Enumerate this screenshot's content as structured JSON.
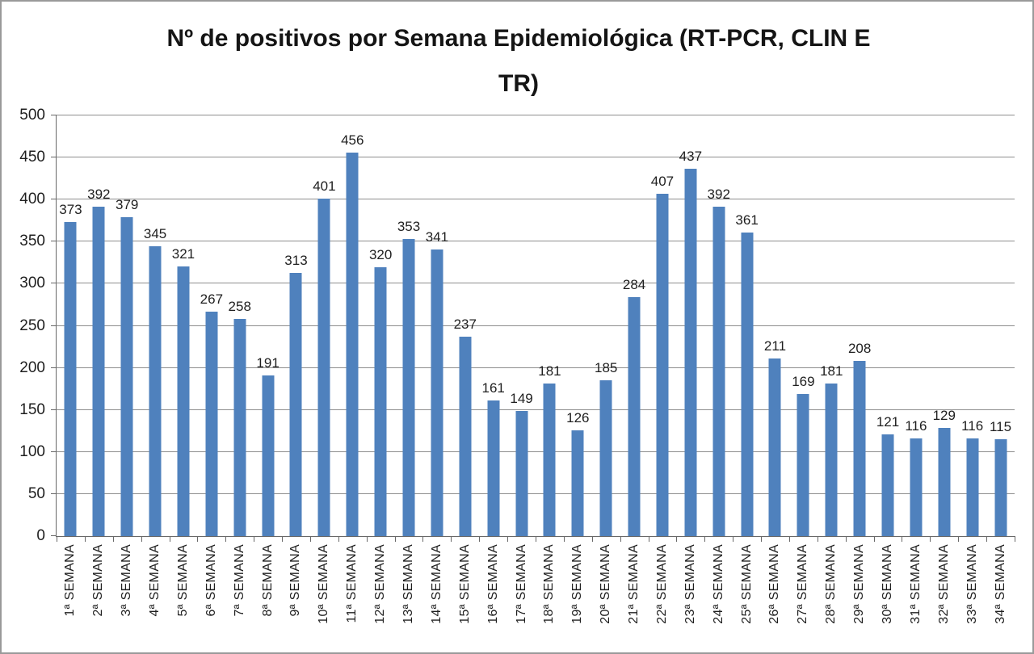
{
  "chart_data": {
    "type": "bar",
    "title": "Nº de positivos por Semana Epidemiológica (RT-PCR, CLIN E TR)",
    "title_lines": [
      "Nº de positivos por Semana Epidemiológica (RT-PCR, CLIN E",
      "TR)"
    ],
    "categories": [
      "1ª SEMANA",
      "2ª SEMANA",
      "3ª SEMANA",
      "4ª SEMANA",
      "5ª SEMANA",
      "6ª SEMANA",
      "7ª SEMANA",
      "8ª SEMANA",
      "9ª SEMANA",
      "10ª SEMANA",
      "11ª SEMANA",
      "12ª SEMANA",
      "13ª SEMANA",
      "14ª SEMANA",
      "15ª SEMANA",
      "16ª SEMANA",
      "17ª SEMANA",
      "18ª SEMANA",
      "19ª SEMANA",
      "20ª SEMANA",
      "21ª SEMANA",
      "22ª SEMANA",
      "23ª SEMANA",
      "24ª SEMANA",
      "25ª SEMANA",
      "26ª SEMANA",
      "27ª SEMANA",
      "28ª SEMANA",
      "29ª SEMANA",
      "30ª SEMANA",
      "31ª SEMANA",
      "32ª SEMANA",
      "33ª SEMANA",
      "34ª SEMANA"
    ],
    "values": [
      373,
      392,
      379,
      345,
      321,
      267,
      258,
      191,
      313,
      401,
      456,
      320,
      353,
      341,
      237,
      161,
      149,
      181,
      126,
      185,
      284,
      407,
      437,
      392,
      361,
      211,
      169,
      181,
      208,
      121,
      116,
      129,
      116,
      115
    ],
    "xlabel": "",
    "ylabel": "",
    "ylim": [
      0,
      500
    ],
    "yticks": [
      0,
      50,
      100,
      150,
      200,
      250,
      300,
      350,
      400,
      450,
      500
    ],
    "grid": true,
    "legend": "none",
    "data_labels": true,
    "colors": {
      "bar": "#4f81bd",
      "gridline": "#8e8e8e",
      "axis": "#686868",
      "text": "#1f1f1f",
      "background": "#ffffff",
      "frame_border": "#9a9a9a"
    }
  }
}
